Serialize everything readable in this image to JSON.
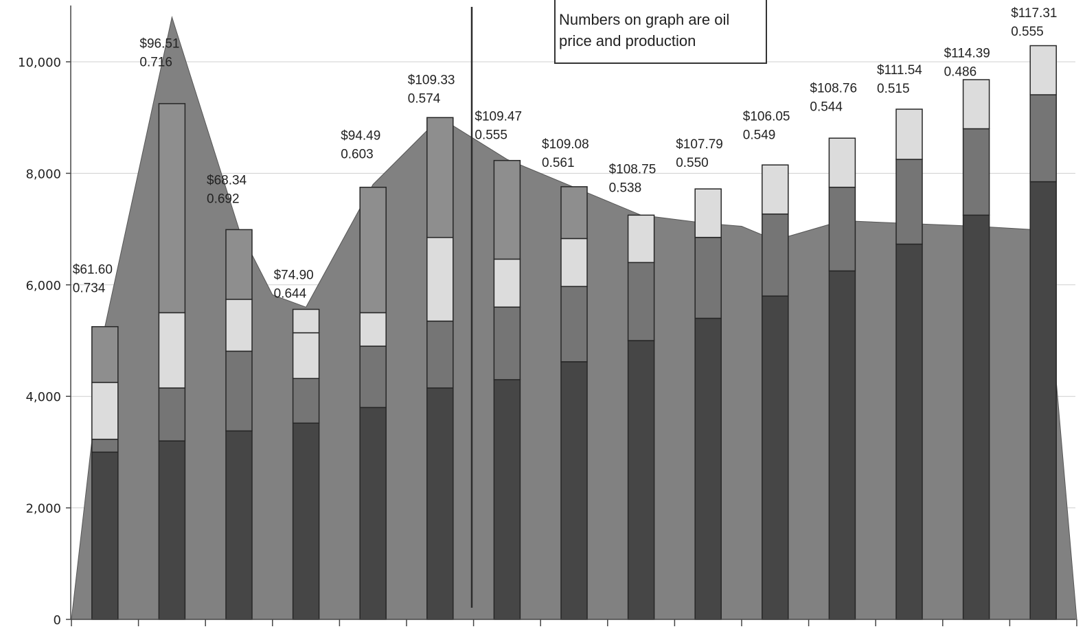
{
  "chart_data": {
    "type": "bar",
    "subtype": "stacked bar with area overlay",
    "title": "",
    "xlabel": "",
    "ylabel": "",
    "ylim": [
      0,
      11000
    ],
    "y_ticks": [
      0,
      2000,
      4000,
      6000,
      8000,
      10000
    ],
    "y_tick_labels": [
      "0",
      "2,000",
      "4,000",
      "6,000",
      "8,000",
      "10,000"
    ],
    "grid": true,
    "legend": "none visible",
    "note": {
      "lines": [
        "Numbers on graph are oil",
        "price and production"
      ]
    },
    "series": [
      {
        "role": "bar-segment-1",
        "color": "#464646",
        "values": [
          3000,
          3200,
          3380,
          3520,
          3800,
          4150,
          4300,
          4620,
          5000,
          5400,
          5800,
          6250,
          6730,
          7250,
          7850
        ]
      },
      {
        "role": "bar-segment-2",
        "color": "#757575",
        "values": [
          230,
          950,
          1430,
          800,
          1100,
          1200,
          1300,
          1350,
          1400,
          1450,
          1470,
          1500,
          1520,
          1550,
          1560
        ]
      },
      {
        "role": "bar-segment-3",
        "color": "#dcdcdc",
        "values": [
          1020,
          1350,
          930,
          820,
          600,
          1500,
          860,
          860,
          850,
          0,
          0,
          0,
          0,
          0,
          0
        ]
      },
      {
        "role": "bar-segment-4",
        "color": "#8e8e8e",
        "values": [
          1000,
          3750,
          1250,
          0,
          2250,
          2150,
          1770,
          930,
          0,
          0,
          0,
          0,
          0,
          0,
          0
        ]
      },
      {
        "role": "bar-segment-5",
        "color": "#dcdcdc",
        "values": [
          0,
          0,
          0,
          420,
          0,
          0,
          0,
          0,
          0,
          870,
          880,
          880,
          900,
          880,
          880
        ]
      }
    ],
    "area": {
      "color": "#818181",
      "points": [
        {
          "x": 0.5,
          "y": 0
        },
        {
          "x": 1,
          "y": 5250
        },
        {
          "x": 2,
          "y": 10800
        },
        {
          "x": 3,
          "y": 7000
        },
        {
          "x": 3.5,
          "y": 5820
        },
        {
          "x": 4,
          "y": 5600
        },
        {
          "x": 5,
          "y": 7800
        },
        {
          "x": 6,
          "y": 9000
        },
        {
          "x": 7,
          "y": 8250
        },
        {
          "x": 8,
          "y": 7750
        },
        {
          "x": 9,
          "y": 7250
        },
        {
          "x": 10,
          "y": 7100
        },
        {
          "x": 10.5,
          "y": 7050
        },
        {
          "x": 11,
          "y": 6800
        },
        {
          "x": 12,
          "y": 7150
        },
        {
          "x": 13,
          "y": 7100
        },
        {
          "x": 14,
          "y": 7050
        },
        {
          "x": 15,
          "y": 6980
        },
        {
          "x": 15.5,
          "y": 0
        }
      ]
    },
    "labels": [
      {
        "bar": 1,
        "price": "$61.60",
        "production": "0.734",
        "y": 6200
      },
      {
        "bar": 2,
        "price": "$96.51",
        "production": "0.716",
        "y": 10250
      },
      {
        "bar": 3,
        "price": "$68.34",
        "production": "0.692",
        "y": 7800
      },
      {
        "bar": 4,
        "price": "$74.90",
        "production": "0.644",
        "y": 6100
      },
      {
        "bar": 5,
        "price": "$94.49",
        "production": "0.603",
        "y": 8600
      },
      {
        "bar": 6,
        "price": "$109.33",
        "production": "0.574",
        "y": 9600
      },
      {
        "bar": 7,
        "price": "$109.47",
        "production": "0.555",
        "y": 8950
      },
      {
        "bar": 8,
        "price": "$109.08",
        "production": "0.561",
        "y": 8450
      },
      {
        "bar": 9,
        "price": "$108.75",
        "production": "0.538",
        "y": 8000
      },
      {
        "bar": 10,
        "price": "$107.79",
        "production": "0.550",
        "y": 8450
      },
      {
        "bar": 11,
        "price": "$106.05",
        "production": "0.549",
        "y": 8950
      },
      {
        "bar": 12,
        "price": "$108.76",
        "production": "0.544",
        "y": 9450
      },
      {
        "bar": 13,
        "price": "$111.54",
        "production": "0.515",
        "y": 9780
      },
      {
        "bar": 14,
        "price": "$114.39",
        "production": "0.486",
        "y": 10080
      },
      {
        "bar": 15,
        "price": "$117.31",
        "production": "0.555",
        "y": 10800
      }
    ]
  }
}
